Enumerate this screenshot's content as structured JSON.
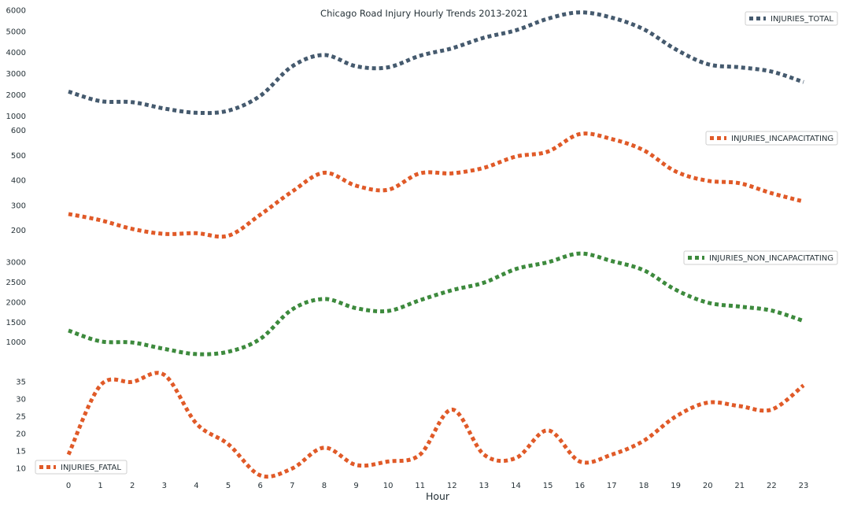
{
  "chart_data": {
    "type": "line",
    "title": "Chicago Road Injury Hourly Trends 2013-2021",
    "xlabel": "Hour",
    "x": [
      0,
      1,
      2,
      3,
      4,
      5,
      6,
      7,
      8,
      9,
      10,
      11,
      12,
      13,
      14,
      15,
      16,
      17,
      18,
      19,
      20,
      21,
      22,
      23
    ],
    "xticks": [
      "0",
      "1",
      "2",
      "3",
      "4",
      "5",
      "6",
      "7",
      "8",
      "9",
      "10",
      "11",
      "12",
      "13",
      "14",
      "15",
      "16",
      "17",
      "18",
      "19",
      "20",
      "21",
      "22",
      "23"
    ],
    "grid": false,
    "panels": [
      {
        "series": [
          {
            "name": "INJURIES_TOTAL",
            "color": "#455a6e",
            "values": [
              2150,
              1700,
              1650,
              1350,
              1150,
              1250,
              1950,
              3350,
              3880,
              3350,
              3300,
              3850,
              4200,
              4700,
              5050,
              5600,
              5900,
              5650,
              5100,
              4150,
              3450,
              3300,
              3100,
              2600
            ]
          }
        ],
        "ylim": [
          900,
          6000
        ],
        "yticks": [
          "1000",
          "2000",
          "3000",
          "4000",
          "5000",
          "6000"
        ],
        "legend_position": "top-right"
      },
      {
        "series": [
          {
            "name": "INJURIES_INCAPACITATING",
            "color": "#e05a28",
            "values": [
              265,
              240,
              205,
              185,
              188,
              178,
              262,
              355,
              430,
              378,
              362,
              428,
              428,
              450,
              495,
              515,
              585,
              565,
              520,
              435,
              398,
              388,
              348,
              315
            ]
          }
        ],
        "ylim": [
          170,
          605
        ],
        "yticks": [
          "200",
          "300",
          "400",
          "500",
          "600"
        ],
        "legend_position": "top-right"
      },
      {
        "series": [
          {
            "name": "INJURIES_NON_INCAPACITATING",
            "color": "#3d8a3d",
            "values": [
              1290,
              1020,
              990,
              830,
              700,
              760,
              1080,
              1820,
              2080,
              1850,
              1780,
              2050,
              2300,
              2490,
              2830,
              3000,
              3220,
              3030,
              2800,
              2310,
              1990,
              1890,
              1790,
              1530
            ]
          }
        ],
        "ylim": [
          600,
          3300
        ],
        "yticks": [
          "1000",
          "1500",
          "2000",
          "2500",
          "3000"
        ],
        "legend_position": "top-right"
      },
      {
        "series": [
          {
            "name": "INJURIES_FATAL",
            "color": "#e05a28",
            "values": [
              14,
              34,
              35,
              37,
              23,
              17,
              8,
              10,
              16,
              11,
              12,
              14,
              27,
              14,
              13,
              21,
              12,
              14,
              18,
              25,
              29,
              28,
              27,
              34
            ]
          }
        ],
        "ylim": [
          8,
          38
        ],
        "yticks": [
          "10",
          "15",
          "20",
          "25",
          "30",
          "35"
        ],
        "legend_position": "bottom-left"
      }
    ]
  }
}
